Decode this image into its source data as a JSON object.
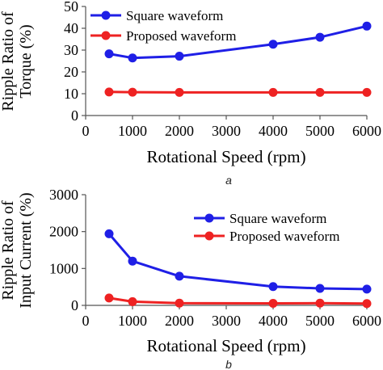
{
  "chart_data": [
    {
      "type": "line",
      "panel_label": "a",
      "xlabel": "Rotational Speed (rpm)",
      "ylabel": [
        "Ripple Ratio of",
        "Torque (%)"
      ],
      "xlim": [
        0,
        6000
      ],
      "ylim": [
        0,
        50
      ],
      "x_ticks": [
        0,
        1000,
        2000,
        3000,
        4000,
        5000,
        6000
      ],
      "y_ticks": [
        0,
        10,
        20,
        30,
        40,
        50
      ],
      "grid": false,
      "legend_position": "top-left",
      "x": [
        500,
        1000,
        2000,
        4000,
        5000,
        6000
      ],
      "series": [
        {
          "name": "Square waveform",
          "color": "#1f1fe6",
          "values": [
            28.3,
            26.4,
            27.2,
            32.7,
            35.9,
            41.0
          ]
        },
        {
          "name": "Proposed waveform",
          "color": "#ee2222",
          "values": [
            10.8,
            10.7,
            10.6,
            10.6,
            10.6,
            10.6
          ]
        }
      ]
    },
    {
      "type": "line",
      "panel_label": "b",
      "xlabel": "Rotational Speed (rpm)",
      "ylabel": [
        "Ripple Ratio of",
        "Input Current (%)"
      ],
      "xlim": [
        0,
        6000
      ],
      "ylim": [
        0,
        3000
      ],
      "x_ticks": [
        0,
        1000,
        2000,
        3000,
        4000,
        5000,
        6000
      ],
      "y_ticks": [
        0,
        1000,
        2000,
        3000
      ],
      "grid": false,
      "legend_position": "top-right",
      "x": [
        500,
        1000,
        2000,
        4000,
        5000,
        6000
      ],
      "series": [
        {
          "name": "Square waveform",
          "color": "#1f1fe6",
          "values": [
            1940,
            1200,
            790,
            510,
            460,
            440
          ]
        },
        {
          "name": "Proposed waveform",
          "color": "#ee2222",
          "values": [
            200,
            100,
            60,
            55,
            60,
            50
          ]
        }
      ]
    }
  ]
}
